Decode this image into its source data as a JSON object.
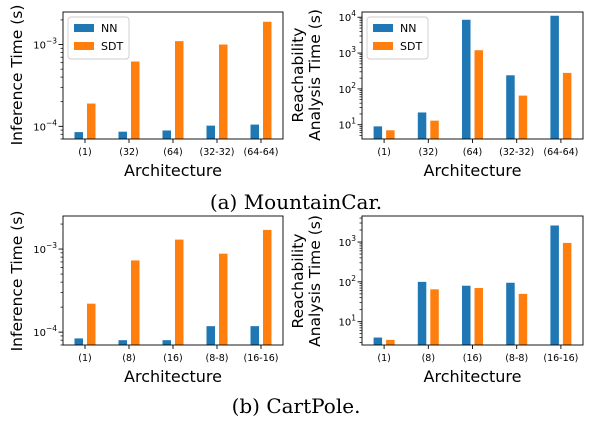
{
  "captions": {
    "a": "(a) MountainCar.",
    "b": "(b) CartPole."
  },
  "colors": {
    "NN": "#1f77b4",
    "SDT": "#ff7f0e"
  },
  "chart_data": [
    {
      "id": "mc-inference",
      "type": "bar",
      "yscale": "log",
      "ylim": [
        7e-05,
        0.0025
      ],
      "ylabel": [
        "Inference Time (s)"
      ],
      "xlabel": "Architecture",
      "categories": [
        "(1)",
        "(32)",
        "(64)",
        "(32-32)",
        "(64-64)"
      ],
      "yticks": [
        {
          "v": 0.0001,
          "base": "10",
          "exp": "−4"
        },
        {
          "v": 0.001,
          "base": "10",
          "exp": "−3"
        }
      ],
      "legend": {
        "position": "top-left",
        "entries": [
          "NN",
          "SDT"
        ]
      },
      "series": [
        {
          "name": "NN",
          "values": [
            8.5e-05,
            8.6e-05,
            8.9e-05,
            0.000102,
            0.000105
          ]
        },
        {
          "name": "SDT",
          "values": [
            0.00019,
            0.00062,
            0.0011,
            0.001,
            0.0019
          ]
        }
      ]
    },
    {
      "id": "mc-reach",
      "type": "bar",
      "yscale": "log",
      "ylim": [
        4,
        14000
      ],
      "ylabel": [
        "Reachability",
        "Analysis Time (s)"
      ],
      "xlabel": "Architecture",
      "categories": [
        "(1)",
        "(32)",
        "(64)",
        "(32-32)",
        "(64-64)"
      ],
      "yticks": [
        {
          "v": 10,
          "base": "10",
          "exp": "1"
        },
        {
          "v": 100,
          "base": "10",
          "exp": "2"
        },
        {
          "v": 1000,
          "base": "10",
          "exp": "3"
        },
        {
          "v": 10000,
          "base": "10",
          "exp": "4"
        }
      ],
      "legend": {
        "position": "top-left",
        "entries": [
          "NN",
          "SDT"
        ]
      },
      "series": [
        {
          "name": "NN",
          "values": [
            9,
            22,
            8500,
            240,
            11000
          ]
        },
        {
          "name": "SDT",
          "values": [
            7,
            13,
            1200,
            65,
            280
          ]
        }
      ]
    },
    {
      "id": "cp-inference",
      "type": "bar",
      "yscale": "log",
      "ylim": [
        7e-05,
        0.0025
      ],
      "ylabel": [
        "Inference Time (s)"
      ],
      "xlabel": "Architecture",
      "categories": [
        "(1)",
        "(8)",
        "(16)",
        "(8-8)",
        "(16-16)"
      ],
      "yticks": [
        {
          "v": 0.0001,
          "base": "10",
          "exp": "−4"
        },
        {
          "v": 0.001,
          "base": "10",
          "exp": "−3"
        }
      ],
      "series": [
        {
          "name": "NN",
          "values": [
            8.4e-05,
            8e-05,
            8e-05,
            0.000118,
            0.000118
          ]
        },
        {
          "name": "SDT",
          "values": [
            0.00022,
            0.00073,
            0.0013,
            0.00088,
            0.0017
          ]
        }
      ]
    },
    {
      "id": "cp-reach",
      "type": "bar",
      "yscale": "log",
      "ylim": [
        2.6,
        4500
      ],
      "ylabel": [
        "Reachability",
        "Analysis Time (s)"
      ],
      "xlabel": "Architecture",
      "categories": [
        "(1)",
        "(8)",
        "(16)",
        "(8-8)",
        "(16-16)"
      ],
      "yticks": [
        {
          "v": 10,
          "base": "10",
          "exp": "1"
        },
        {
          "v": 100,
          "base": "10",
          "exp": "2"
        },
        {
          "v": 1000,
          "base": "10",
          "exp": "3"
        }
      ],
      "series": [
        {
          "name": "NN",
          "values": [
            4,
            100,
            80,
            95,
            2600
          ]
        },
        {
          "name": "SDT",
          "values": [
            3.5,
            65,
            70,
            50,
            950
          ]
        }
      ]
    }
  ]
}
